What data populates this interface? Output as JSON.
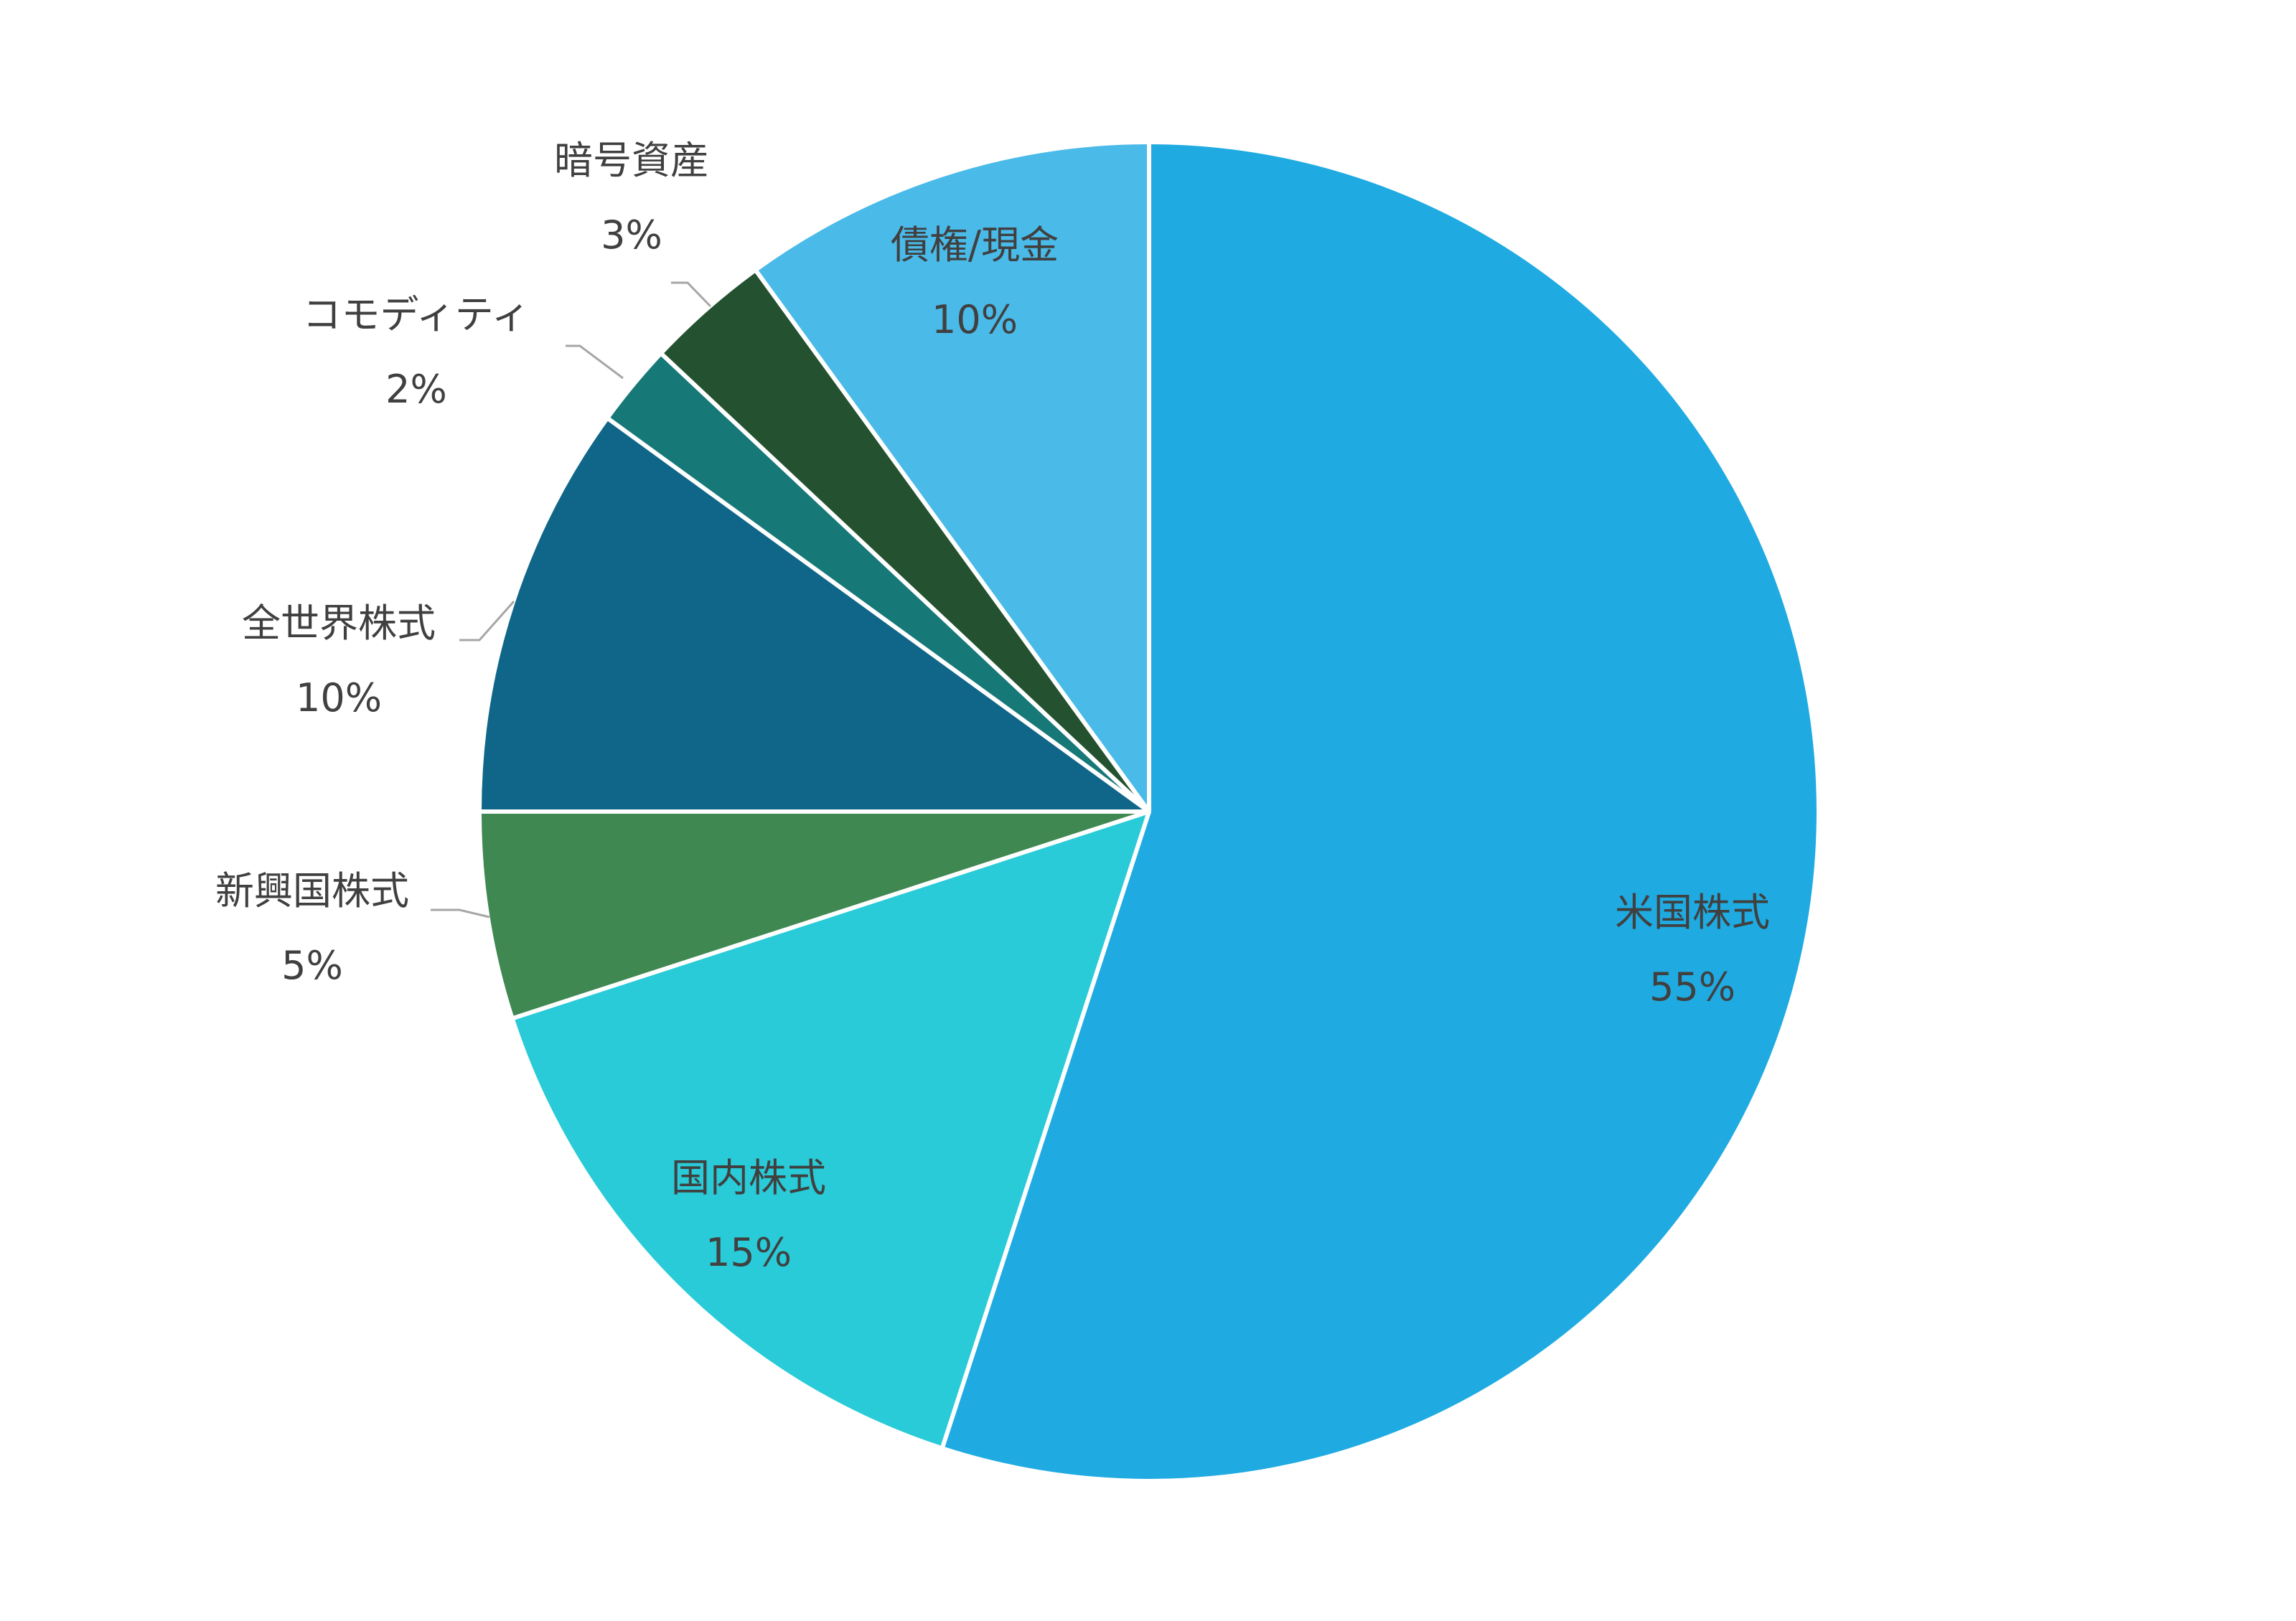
{
  "chart_data": {
    "type": "pie",
    "title": "",
    "start_angle_deg": 0,
    "direction": "clockwise",
    "slices": [
      {
        "label": "米国株式",
        "value": 55,
        "value_label": "55%",
        "color": "#1FABE2",
        "label_placement": "inside"
      },
      {
        "label": "国内株式",
        "value": 15,
        "value_label": "15%",
        "color": "#28CBD7",
        "label_placement": "inside"
      },
      {
        "label": "新興国株式",
        "value": 5,
        "value_label": "5%",
        "color": "#3F8852",
        "label_placement": "outside"
      },
      {
        "label": "全世界株式",
        "value": 10,
        "value_label": "10%",
        "color": "#106688",
        "label_placement": "outside"
      },
      {
        "label": "コモディティ",
        "value": 2,
        "value_label": "2%",
        "color": "#177878",
        "label_placement": "outside"
      },
      {
        "label": "暗号資産",
        "value": 3,
        "value_label": "3%",
        "color": "#245230",
        "label_placement": "outside"
      },
      {
        "label": "債権/現金",
        "value": 10,
        "value_label": "10%",
        "color": "#4ABAE9",
        "label_placement": "inside"
      }
    ]
  }
}
